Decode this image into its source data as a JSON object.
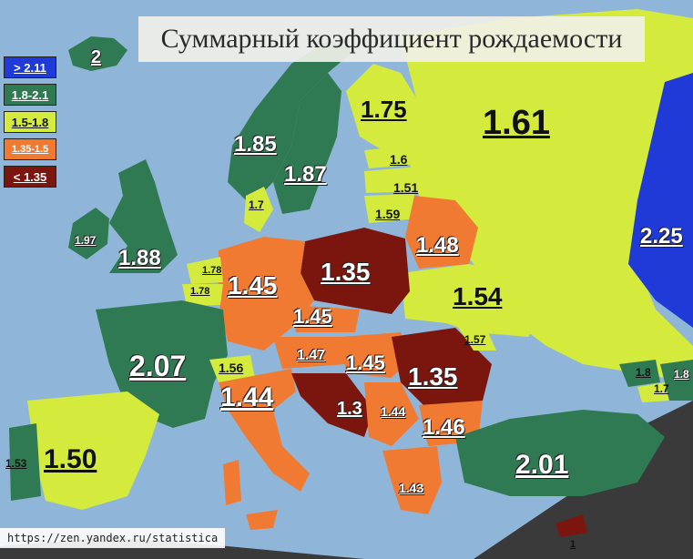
{
  "title": "Суммарный коэффициент рождаемости",
  "source": "https://zen.yandex.ru/statistica",
  "colors": {
    "sea": "#8fb6d8",
    "gt211": "#1f3ad6",
    "c18_21": "#2f7a52",
    "c15_18": "#d4ea3c",
    "c135_15": "#f07a32",
    "lt135": "#7a160e",
    "outside": "#3a3a3a"
  },
  "legend": [
    {
      "label": "> 2.11",
      "color": "#1f3ad6"
    },
    {
      "label": "1.8-2.1",
      "color": "#2f7a52"
    },
    {
      "label": "1.5-1.8",
      "color": "#d4ea3c"
    },
    {
      "label": "1.35-1.5",
      "color": "#f07a32"
    },
    {
      "label": "< 1.35",
      "color": "#7a160e"
    }
  ],
  "countries": {
    "iceland": "2",
    "norway": "1.85",
    "sweden": "1.87",
    "finland": "1.75",
    "russia": "1.61",
    "kazakhstan": "2.25",
    "estonia": "1.6",
    "latvia": "1.51",
    "lithuania": "1.59",
    "denmark": "1.7",
    "ireland": "1.97",
    "uk": "1.88",
    "netherlands": "1.78",
    "belgium": "1.78",
    "germany": "1.45",
    "poland": "1.35",
    "belarus": "1.48",
    "ukraine": "1.54",
    "czech": "1.45",
    "austria": "1.47",
    "hungary": "1.45",
    "romania": "1.35",
    "moldova": "1.57",
    "france": "2.07",
    "switzerland": "1.56",
    "italy": "1.44",
    "croatia_bosnia": "1.3",
    "serbia": "1.44",
    "bulgaria": "1.46",
    "greece": "1.43",
    "turkey": "2.01",
    "spain": "1.50",
    "portugal": "1.53",
    "georgia": "1.8",
    "armenia": "1.7",
    "azerbaijan": "1.8",
    "cyprus": "1"
  }
}
